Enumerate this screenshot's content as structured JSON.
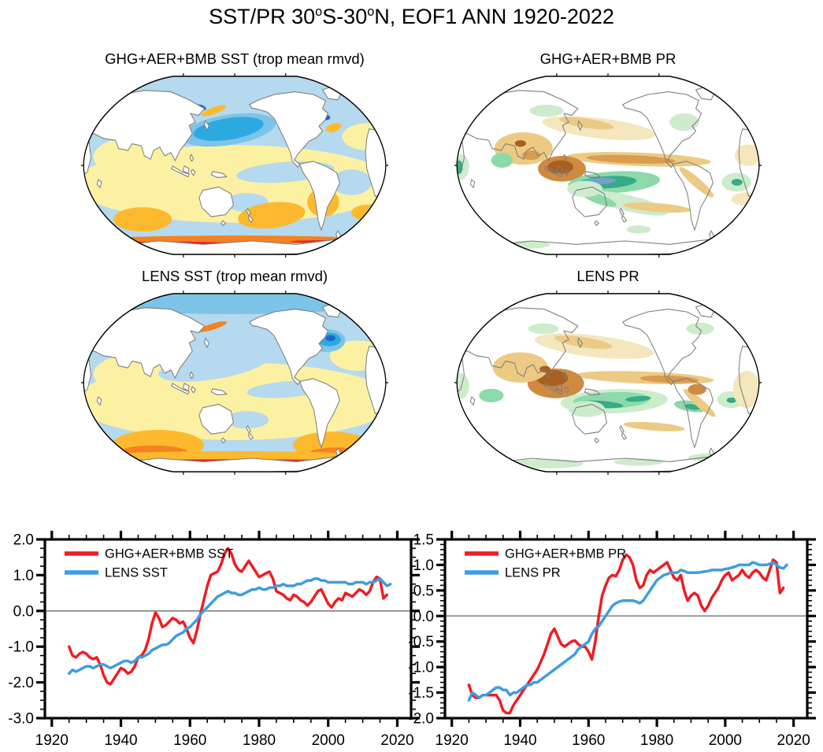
{
  "title": {
    "p1": "SST/PR 30",
    "sup1": "o",
    "p2": "S-30",
    "sup2": "o",
    "p3": "N, EOF1 ANN 1920-2022"
  },
  "maps": [
    {
      "id": "ghg_sst",
      "title": "GHG+AER+BMB SST (trop mean rmvd)",
      "field": "sst"
    },
    {
      "id": "ghg_pr",
      "title": "GHG+AER+BMB PR",
      "field": "pr"
    },
    {
      "id": "lens_sst",
      "title": "LENS SST (trop mean rmvd)",
      "field": "sst"
    },
    {
      "id": "lens_pr",
      "title": "LENS PR",
      "field": "pr"
    }
  ],
  "palette": {
    "sst": {
      "light_blue": "#b5d9ee",
      "halo_blue": "#7cc4e8",
      "mid_blue": "#2da9e1",
      "deep_blue": "#1b66c9",
      "yellow": "#fcf1a2",
      "orange": "#fdb92e",
      "deep_orange": "#f5821f",
      "red": "#ea2227"
    },
    "pr": {
      "pale_green": "#cdeccc",
      "green": "#8cd9aa",
      "teal": "#35ab87",
      "blue_core": "#6fa3c8",
      "pale_tan": "#f4e6bd",
      "tan": "#ecca84",
      "dark_tan": "#da9c4e",
      "mid_brown": "#cf8a42",
      "brown": "#a9601f"
    },
    "land_fill": "#ffffff",
    "coast": "#7d7d7d",
    "frame": "#000000",
    "zero_line": "#8c8c8c",
    "series_red": "#ee1d23",
    "series_blue": "#3e9de0"
  },
  "chart_data": [
    {
      "type": "line",
      "name": "sst_timeseries",
      "x_range": [
        1918,
        2024
      ],
      "ylim": [
        -3.0,
        2.0
      ],
      "x_major": 20,
      "x_minor": 5,
      "y_major": 1.0,
      "y_minor": 0.25,
      "x_tick_labels": [
        "1920",
        "1940",
        "1960",
        "1980",
        "2000",
        "2020"
      ],
      "y_tick_labels": [
        "2.0",
        "1.0",
        "0.0",
        "-1.0",
        "-2.0",
        "-3.0"
      ],
      "zero_line": true,
      "legend_position": "top-left",
      "series": [
        {
          "name": "GHG+AER+BMB SST",
          "color_key": "series_red",
          "start": 1925,
          "step": 1,
          "values": [
            -1.0,
            -1.25,
            -1.3,
            -1.2,
            -1.15,
            -1.2,
            -1.3,
            -1.35,
            -1.3,
            -1.5,
            -1.8,
            -2.0,
            -2.05,
            -1.9,
            -1.75,
            -1.6,
            -1.65,
            -1.75,
            -1.7,
            -1.55,
            -1.3,
            -1.25,
            -1.1,
            -0.8,
            -0.35,
            -0.05,
            -0.2,
            -0.45,
            -0.4,
            -0.3,
            -0.2,
            -0.25,
            -0.35,
            -0.3,
            -0.5,
            -0.75,
            -0.9,
            -0.55,
            -0.1,
            0.3,
            0.7,
            1.0,
            1.05,
            1.1,
            1.3,
            1.6,
            1.75,
            1.6,
            1.3,
            1.15,
            1.1,
            1.25,
            1.4,
            1.25,
            1.1,
            0.95,
            1.0,
            1.05,
            1.1,
            0.9,
            0.55,
            0.5,
            0.45,
            0.35,
            0.3,
            0.45,
            0.4,
            0.3,
            0.25,
            0.15,
            0.25,
            0.4,
            0.55,
            0.6,
            0.4,
            0.2,
            0.1,
            0.25,
            0.35,
            0.3,
            0.5,
            0.45,
            0.4,
            0.5,
            0.6,
            0.55,
            0.45,
            0.55,
            0.8,
            0.95,
            0.9,
            0.35,
            0.45
          ]
        },
        {
          "name": "LENS SST",
          "color_key": "series_blue",
          "start": 1925,
          "step": 1,
          "values": [
            -1.75,
            -1.65,
            -1.7,
            -1.65,
            -1.6,
            -1.55,
            -1.55,
            -1.6,
            -1.55,
            -1.5,
            -1.5,
            -1.55,
            -1.6,
            -1.55,
            -1.5,
            -1.45,
            -1.4,
            -1.4,
            -1.45,
            -1.4,
            -1.3,
            -1.3,
            -1.25,
            -1.2,
            -1.1,
            -1.05,
            -1.0,
            -0.95,
            -0.95,
            -0.9,
            -0.8,
            -0.7,
            -0.65,
            -0.6,
            -0.5,
            -0.45,
            -0.35,
            -0.25,
            -0.1,
            0.0,
            0.1,
            0.2,
            0.3,
            0.4,
            0.45,
            0.5,
            0.55,
            0.5,
            0.5,
            0.45,
            0.45,
            0.5,
            0.55,
            0.6,
            0.6,
            0.65,
            0.6,
            0.6,
            0.65,
            0.65,
            0.7,
            0.7,
            0.75,
            0.7,
            0.7,
            0.7,
            0.75,
            0.75,
            0.8,
            0.85,
            0.85,
            0.9,
            0.9,
            0.85,
            0.85,
            0.8,
            0.8,
            0.8,
            0.8,
            0.8,
            0.8,
            0.75,
            0.75,
            0.8,
            0.8,
            0.8,
            0.75,
            0.8,
            0.8,
            0.85,
            0.9,
            0.8,
            0.7,
            0.75
          ]
        }
      ]
    },
    {
      "type": "line",
      "name": "pr_timeseries",
      "x_range": [
        1918,
        2024
      ],
      "ylim": [
        -2.0,
        1.5
      ],
      "x_major": 20,
      "x_minor": 5,
      "y_major": 0.5,
      "y_minor": 0.1,
      "x_tick_labels": [
        "1920",
        "1940",
        "1960",
        "1980",
        "2000",
        "2020"
      ],
      "y_tick_labels": [
        "1.5",
        "1.0",
        "0.5",
        "0.0",
        "-0.5",
        "-1.0",
        "-1.5",
        "-2.0"
      ],
      "zero_line": true,
      "legend_position": "top-left",
      "series": [
        {
          "name": "GHG+AER+BMB PR",
          "color_key": "series_red",
          "start": 1925,
          "step": 1,
          "values": [
            -1.35,
            -1.55,
            -1.6,
            -1.6,
            -1.55,
            -1.55,
            -1.55,
            -1.55,
            -1.55,
            -1.65,
            -1.85,
            -1.9,
            -1.9,
            -1.75,
            -1.65,
            -1.55,
            -1.45,
            -1.35,
            -1.25,
            -1.15,
            -1.05,
            -0.9,
            -0.75,
            -0.55,
            -0.35,
            -0.25,
            -0.4,
            -0.55,
            -0.6,
            -0.55,
            -0.5,
            -0.48,
            -0.55,
            -0.6,
            -0.6,
            -0.7,
            -0.85,
            -0.5,
            0.0,
            0.4,
            0.6,
            0.75,
            0.8,
            0.78,
            0.9,
            1.1,
            1.2,
            1.15,
            1.0,
            0.7,
            0.55,
            0.6,
            0.8,
            0.9,
            0.85,
            0.9,
            0.95,
            1.0,
            1.05,
            0.9,
            0.75,
            0.7,
            0.8,
            0.5,
            0.3,
            0.4,
            0.45,
            0.4,
            0.2,
            0.1,
            0.2,
            0.35,
            0.45,
            0.55,
            0.7,
            0.8,
            0.85,
            0.7,
            0.75,
            0.8,
            0.9,
            0.8,
            0.75,
            0.85,
            0.9,
            0.85,
            0.75,
            0.7,
            0.9,
            1.1,
            1.05,
            0.45,
            0.55
          ]
        },
        {
          "name": "LENS PR",
          "color_key": "series_blue",
          "start": 1925,
          "step": 1,
          "values": [
            -1.65,
            -1.5,
            -1.55,
            -1.6,
            -1.55,
            -1.55,
            -1.5,
            -1.45,
            -1.4,
            -1.4,
            -1.45,
            -1.45,
            -1.55,
            -1.5,
            -1.5,
            -1.45,
            -1.4,
            -1.35,
            -1.35,
            -1.3,
            -1.3,
            -1.25,
            -1.2,
            -1.15,
            -1.1,
            -1.05,
            -1.0,
            -0.95,
            -0.9,
            -0.85,
            -0.8,
            -0.75,
            -0.65,
            -0.6,
            -0.55,
            -0.5,
            -0.35,
            -0.25,
            -0.2,
            -0.1,
            0.0,
            0.1,
            0.2,
            0.25,
            0.28,
            0.3,
            0.3,
            0.3,
            0.3,
            0.28,
            0.25,
            0.3,
            0.4,
            0.5,
            0.6,
            0.7,
            0.75,
            0.8,
            0.82,
            0.85,
            0.85,
            0.85,
            0.9,
            0.88,
            0.85,
            0.85,
            0.85,
            0.85,
            0.86,
            0.87,
            0.88,
            0.9,
            0.9,
            0.9,
            0.9,
            0.92,
            0.93,
            0.95,
            0.97,
            1.0,
            1.0,
            1.0,
            1.0,
            1.05,
            1.03,
            1.0,
            1.0,
            1.0,
            1.02,
            1.05,
            1.0,
            0.95,
            0.93,
            1.0
          ]
        }
      ]
    }
  ]
}
